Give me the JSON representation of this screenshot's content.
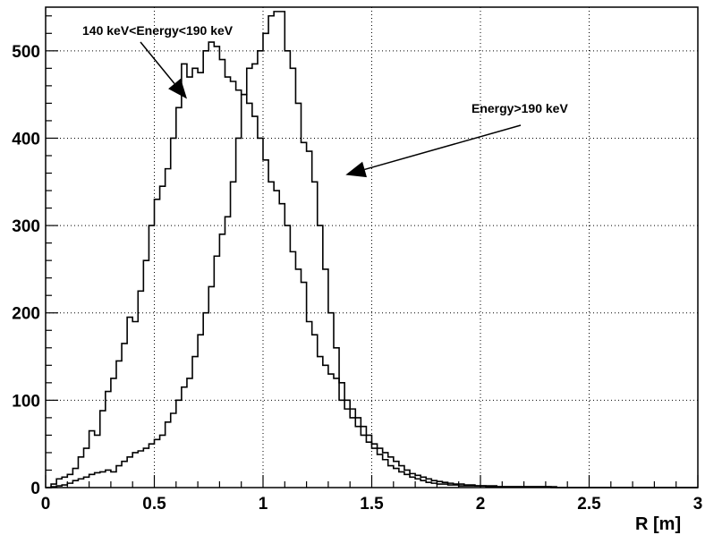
{
  "chart_data": {
    "type": "line",
    "title": "",
    "xlabel": "R [m]",
    "ylabel": "",
    "xlim": [
      0,
      3
    ],
    "ylim": [
      0,
      550
    ],
    "x_ticks": [
      0,
      0.5,
      1,
      1.5,
      2,
      2.5,
      3
    ],
    "x_tick_labels": [
      "0",
      "0.5",
      "1",
      "1.5",
      "2",
      "2.5",
      "3"
    ],
    "y_ticks": [
      0,
      100,
      200,
      300,
      400,
      500
    ],
    "y_tick_labels": [
      "0",
      "100",
      "200",
      "300",
      "400",
      "500"
    ],
    "grid": true,
    "legend": "none",
    "line_style": "step",
    "bin_width": 0.025,
    "bin_start": 0,
    "series": [
      {
        "values": [
          0,
          4,
          10,
          12,
          15,
          22,
          35,
          45,
          65,
          60,
          88,
          110,
          125,
          145,
          165,
          195,
          190,
          225,
          260,
          300,
          330,
          345,
          365,
          400,
          435,
          485,
          470,
          480,
          475,
          500,
          510,
          505,
          490,
          470,
          465,
          455,
          450,
          440,
          425,
          400,
          375,
          350,
          340,
          325,
          300,
          270,
          250,
          235,
          190,
          175,
          150,
          140,
          130,
          125,
          100,
          90,
          80,
          70,
          60,
          52,
          45,
          38,
          32,
          25,
          22,
          18,
          15,
          12,
          10,
          8,
          6,
          5,
          4,
          4,
          3,
          3,
          2,
          2,
          2,
          2,
          2,
          1,
          1,
          1,
          1,
          1,
          1,
          1,
          1,
          1,
          1,
          1,
          1,
          0,
          0,
          0,
          0,
          0,
          0,
          0,
          0,
          0,
          0,
          0,
          0,
          0,
          0,
          0,
          0,
          0,
          0,
          0,
          0,
          0,
          0,
          0,
          0,
          0,
          0,
          0
        ]
      },
      {
        "values": [
          0,
          1,
          2,
          3,
          5,
          8,
          10,
          12,
          15,
          17,
          18,
          20,
          18,
          25,
          30,
          35,
          40,
          42,
          45,
          50,
          55,
          60,
          75,
          85,
          100,
          115,
          125,
          150,
          175,
          200,
          230,
          265,
          290,
          310,
          350,
          400,
          450,
          480,
          485,
          500,
          520,
          540,
          545,
          545,
          500,
          480,
          440,
          395,
          385,
          350,
          300,
          250,
          200,
          160,
          120,
          100,
          90,
          80,
          70,
          60,
          50,
          45,
          40,
          35,
          30,
          25,
          20,
          16,
          14,
          12,
          10,
          8,
          7,
          6,
          5,
          4,
          4,
          3,
          3,
          2,
          2,
          2,
          2,
          1,
          1,
          1,
          1,
          1,
          1,
          1,
          1,
          1,
          1,
          1,
          0,
          0,
          0,
          0,
          0,
          0,
          0,
          0,
          0,
          0,
          0,
          0,
          0,
          0,
          0,
          0,
          0,
          0,
          0,
          0,
          0,
          0,
          0,
          0,
          0,
          0
        ]
      }
    ],
    "annotations": [
      {
        "text": "140 keV<Energy<190 keV",
        "arrow_to": [
          0.65,
          445
        ]
      },
      {
        "text": "Energy>190 keV",
        "arrow_to": [
          1.38,
          358
        ]
      }
    ]
  }
}
